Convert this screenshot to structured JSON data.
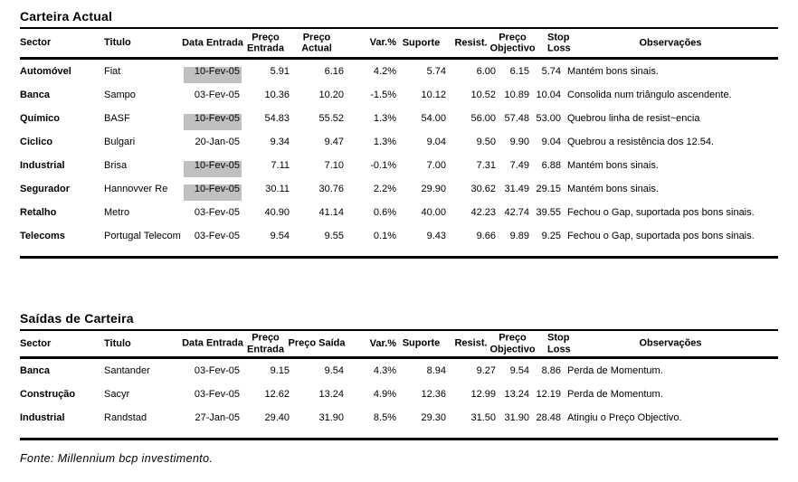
{
  "colors": {
    "highlight": "#c0c0c0",
    "rule": "#000000",
    "background": "#ffffff"
  },
  "source_note": "Fonte: Millennium bcp investimento.",
  "tables": [
    {
      "title": "Carteira Actual",
      "columns": [
        {
          "key": "sector",
          "label": "Sector"
        },
        {
          "key": "titulo",
          "label": "Titulo"
        },
        {
          "key": "data_entrada",
          "label": "Data Entrada"
        },
        {
          "key": "preco_entrada",
          "label": "Preço\nEntrada"
        },
        {
          "key": "preco_actual",
          "label": "Preço\nActual"
        },
        {
          "key": "var_pct",
          "label": "Var.%"
        },
        {
          "key": "suporte",
          "label": "Suporte"
        },
        {
          "key": "resist",
          "label": "Resist."
        },
        {
          "key": "preco_objectivo",
          "label": "Preço\nObjectivo"
        },
        {
          "key": "stop_loss",
          "label": "Stop\nLoss"
        },
        {
          "key": "observacoes",
          "label": "Observações"
        }
      ],
      "rows": [
        {
          "sector": "Automóvel",
          "titulo": "Fiat",
          "data_entrada": "10-Fev-05",
          "highlight_date": true,
          "preco_entrada": "5.91",
          "preco_actual": "6.16",
          "var_pct": "4.2%",
          "suporte": "5.74",
          "resist": "6.00",
          "preco_objectivo": "6.15",
          "stop_loss": "5.74",
          "observacoes": "Mantém bons sinais."
        },
        {
          "sector": "Banca",
          "titulo": "Sampo",
          "data_entrada": "03-Fev-05",
          "highlight_date": false,
          "preco_entrada": "10.36",
          "preco_actual": "10.20",
          "var_pct": "-1.5%",
          "suporte": "10.12",
          "resist": "10.52",
          "preco_objectivo": "10.89",
          "stop_loss": "10.04",
          "observacoes": "Consolida num triângulo ascendente."
        },
        {
          "sector": "Químico",
          "titulo": "BASF",
          "data_entrada": "10-Fev-05",
          "highlight_date": true,
          "preco_entrada": "54.83",
          "preco_actual": "55.52",
          "var_pct": "1.3%",
          "suporte": "54.00",
          "resist": "56.00",
          "preco_objectivo": "57.48",
          "stop_loss": "53.00",
          "observacoes": "Quebrou linha de resist~encia"
        },
        {
          "sector": "Ciclico",
          "titulo": "Bulgari",
          "data_entrada": "20-Jan-05",
          "highlight_date": false,
          "preco_entrada": "9.34",
          "preco_actual": "9.47",
          "var_pct": "1.3%",
          "suporte": "9.04",
          "resist": "9.50",
          "preco_objectivo": "9.90",
          "stop_loss": "9.04",
          "observacoes": "Quebrou a resistência dos 12.54."
        },
        {
          "sector": "Industrial",
          "titulo": "Brisa",
          "data_entrada": "10-Fev-05",
          "highlight_date": true,
          "preco_entrada": "7.11",
          "preco_actual": "7.10",
          "var_pct": "-0.1%",
          "suporte": "7.00",
          "resist": "7.31",
          "preco_objectivo": "7.49",
          "stop_loss": "6.88",
          "observacoes": "Mantém bons sinais."
        },
        {
          "sector": "Segurador",
          "titulo": "Hannovver Re",
          "data_entrada": "10-Fev-05",
          "highlight_date": true,
          "preco_entrada": "30.11",
          "preco_actual": "30.76",
          "var_pct": "2.2%",
          "suporte": "29.90",
          "resist": "30.62",
          "preco_objectivo": "31.49",
          "stop_loss": "29.15",
          "observacoes": "Mantém bons sinais."
        },
        {
          "sector": "Retalho",
          "titulo": "Metro",
          "data_entrada": "03-Fev-05",
          "highlight_date": false,
          "preco_entrada": "40.90",
          "preco_actual": "41.14",
          "var_pct": "0.6%",
          "suporte": "40.00",
          "resist": "42.23",
          "preco_objectivo": "42.74",
          "stop_loss": "39.55",
          "observacoes": "Fechou o Gap, suportada pos bons sinais."
        },
        {
          "sector": "Telecoms",
          "titulo": "Portugal Telecom",
          "data_entrada": "03-Fev-05",
          "highlight_date": false,
          "preco_entrada": "9.54",
          "preco_actual": "9.55",
          "var_pct": "0.1%",
          "suporte": "9.43",
          "resist": "9.66",
          "preco_objectivo": "9.89",
          "stop_loss": "9.25",
          "observacoes": "Fechou o Gap, suportada pos bons sinais."
        }
      ]
    },
    {
      "title": "Saídas de Carteira",
      "columns": [
        {
          "key": "sector",
          "label": "Sector"
        },
        {
          "key": "titulo",
          "label": "Titulo"
        },
        {
          "key": "data_entrada",
          "label": "Data Entrada"
        },
        {
          "key": "preco_entrada",
          "label": "Preço\nEntrada"
        },
        {
          "key": "preco_saida",
          "label": "Preço Saída"
        },
        {
          "key": "var_pct",
          "label": "Var.%"
        },
        {
          "key": "suporte",
          "label": "Suporte"
        },
        {
          "key": "resist",
          "label": "Resist."
        },
        {
          "key": "preco_objectivo",
          "label": "Preço\nObjectivo"
        },
        {
          "key": "stop_loss",
          "label": "Stop\nLoss"
        },
        {
          "key": "observacoes",
          "label": "Observações"
        }
      ],
      "rows": [
        {
          "sector": "Banca",
          "titulo": "Santander",
          "data_entrada": "03-Fev-05",
          "highlight_date": false,
          "preco_entrada": "9.15",
          "preco_saida": "9.54",
          "var_pct": "4.3%",
          "suporte": "8.94",
          "resist": "9.27",
          "preco_objectivo": "9.54",
          "stop_loss": "8.86",
          "observacoes": "Perda de Momentum."
        },
        {
          "sector": "Construção",
          "titulo": "Sacyr",
          "data_entrada": "03-Fev-05",
          "highlight_date": false,
          "preco_entrada": "12.62",
          "preco_saida": "13.24",
          "var_pct": "4.9%",
          "suporte": "12.36",
          "resist": "12.99",
          "preco_objectivo": "13.24",
          "stop_loss": "12.19",
          "observacoes": "Perda de Momentum."
        },
        {
          "sector": "Industrial",
          "titulo": "Randstad",
          "data_entrada": "27-Jan-05",
          "highlight_date": false,
          "preco_entrada": "29.40",
          "preco_saida": "31.90",
          "var_pct": "8.5%",
          "suporte": "29.30",
          "resist": "31.50",
          "preco_objectivo": "31.90",
          "stop_loss": "28.48",
          "observacoes": "Atingiu o Preço Objectivo."
        }
      ]
    }
  ]
}
